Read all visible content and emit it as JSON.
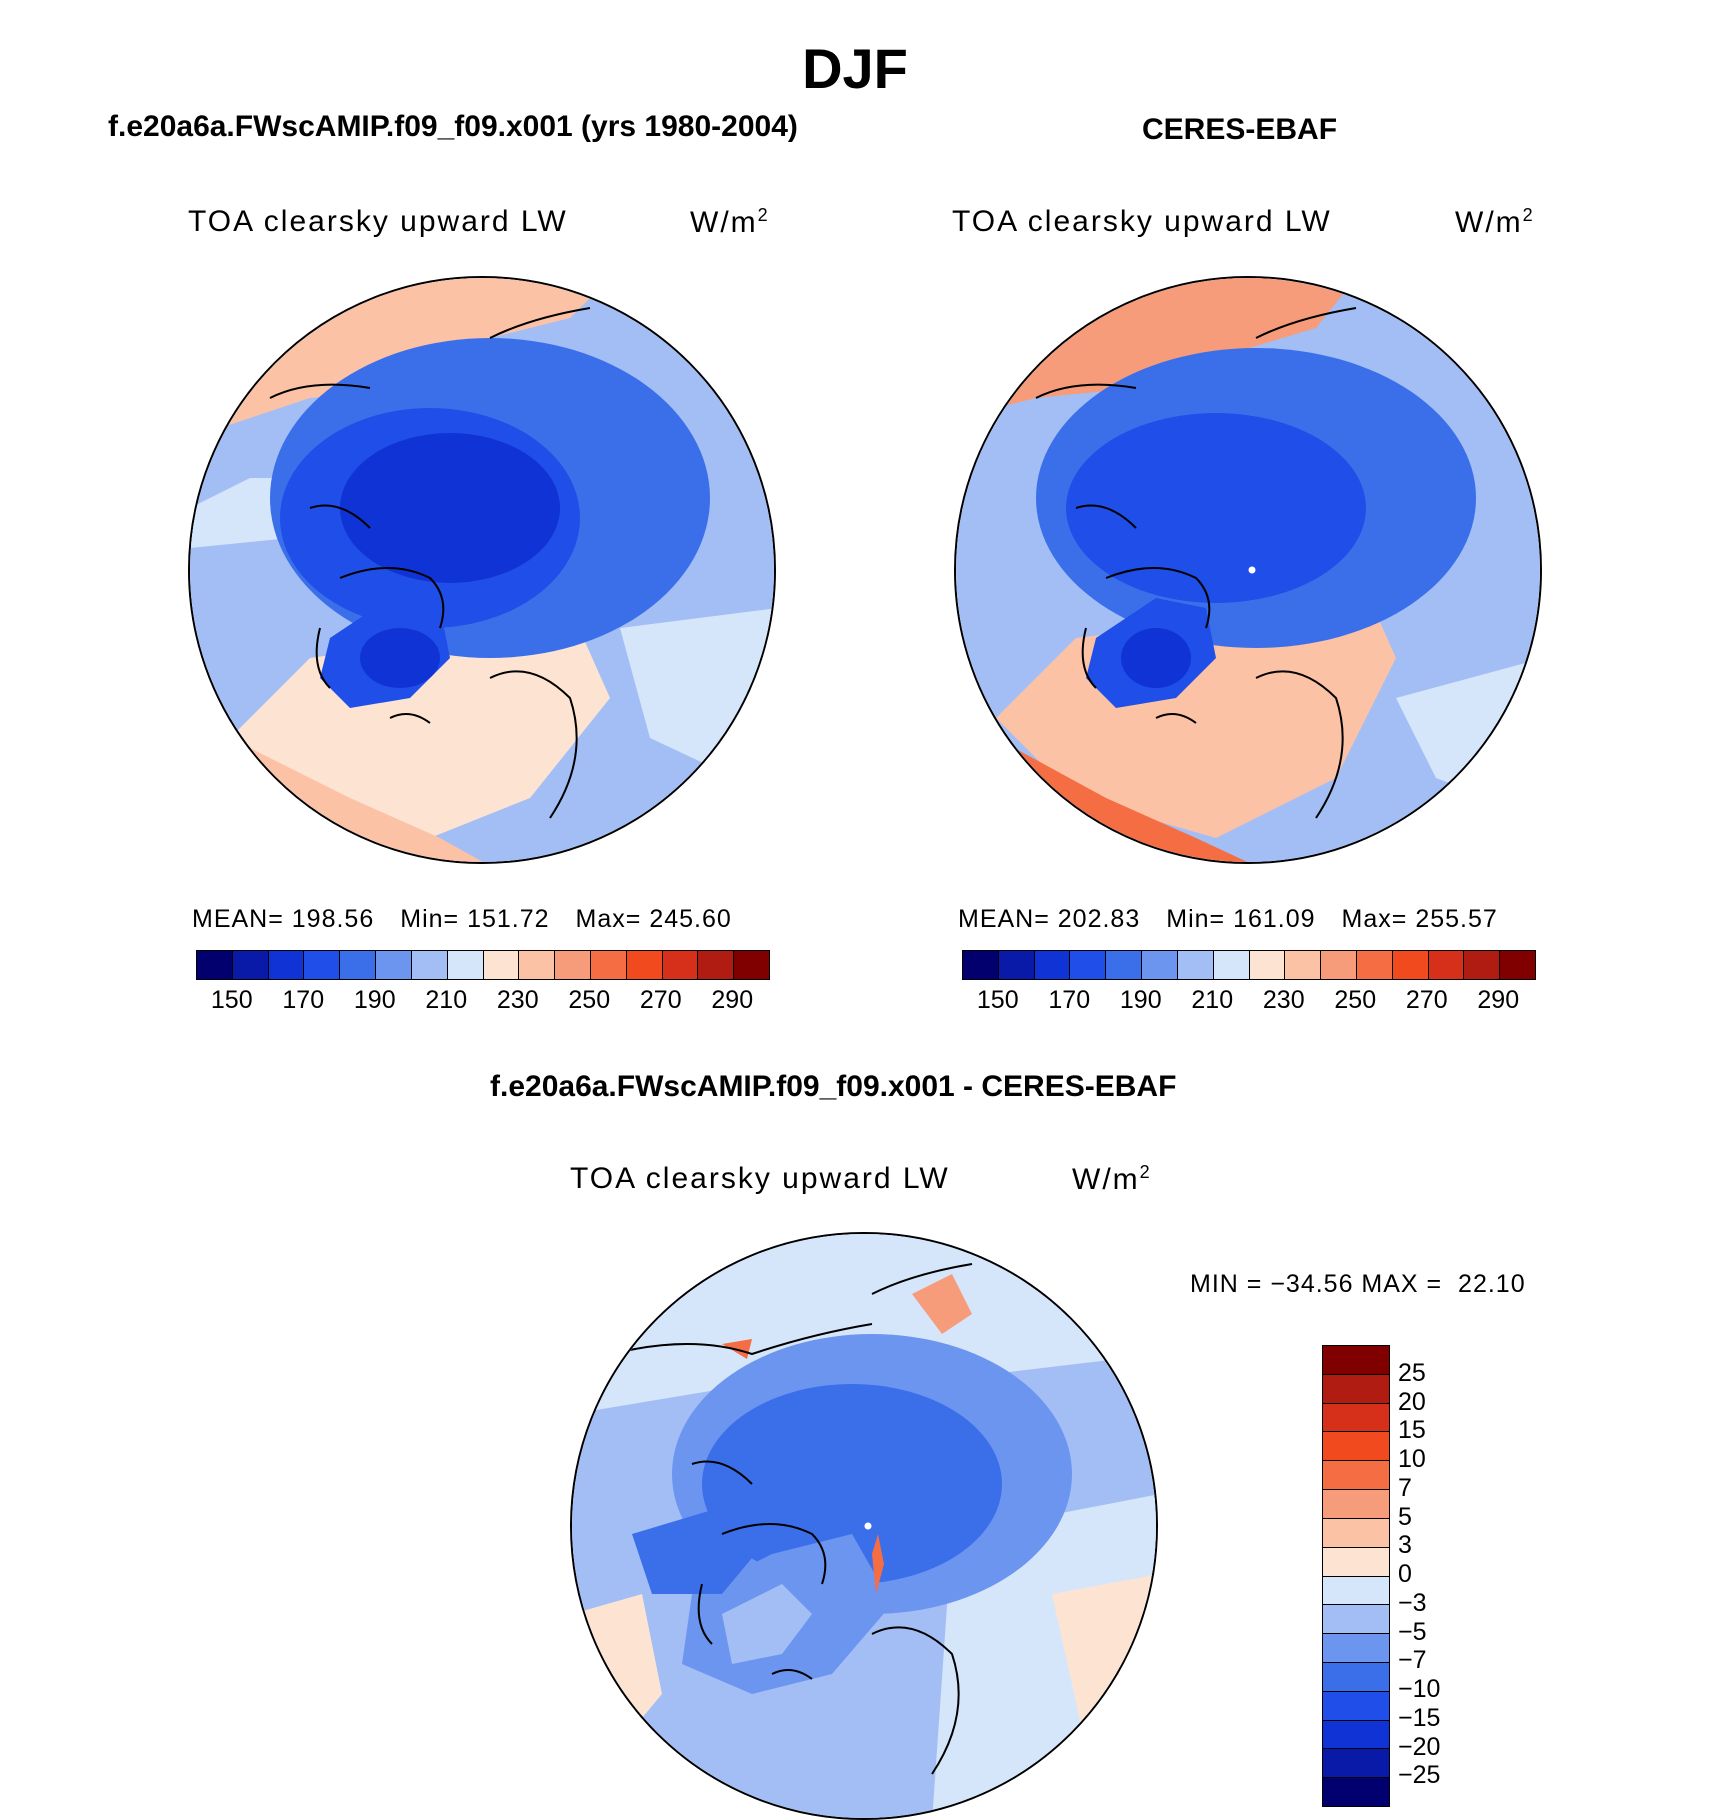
{
  "season": "DJF",
  "panels": {
    "model": {
      "title": "f.e20a6a.FWscAMIP.f09_f09.x001 (yrs 1980-2004)",
      "variable": "TOA clearsky upward LW",
      "unit": "W/m",
      "unit_exp": "2",
      "mean": "MEAN= 198.56",
      "min": "Min= 151.72",
      "max": "Max= 245.60"
    },
    "obs": {
      "title": "CERES-EBAF",
      "variable": "TOA clearsky upward LW",
      "unit": "W/m",
      "unit_exp": "2",
      "mean": "MEAN= 202.83",
      "min": "Min= 161.09",
      "max": "Max= 255.57"
    },
    "diff": {
      "title": "f.e20a6a.FWscAMIP.f09_f09.x001 - CERES-EBAF",
      "variable": "TOA clearsky upward LW",
      "unit": "W/m",
      "unit_exp": "2",
      "minmax": "MIN = −34.56 MAX =  22.10"
    }
  },
  "colorbar_abs": {
    "colors": [
      "#02006e",
      "#0a1aa8",
      "#1033d6",
      "#1f4fe8",
      "#3b6fea",
      "#6c95f0",
      "#a3bef5",
      "#d6e6fa",
      "#fde4d2",
      "#fbc2a6",
      "#f79c7a",
      "#f46d43",
      "#f04a1e",
      "#d7301a",
      "#b01b12",
      "#800000"
    ],
    "tick_labels": [
      "150",
      "170",
      "190",
      "210",
      "230",
      "250",
      "270",
      "290"
    ]
  },
  "colorbar_diff": {
    "colors": [
      "#800000",
      "#b01b12",
      "#d7301a",
      "#f04a1e",
      "#f46d43",
      "#f79c7a",
      "#fbc2a6",
      "#fde4d2",
      "#d6e6fa",
      "#a3bef5",
      "#6c95f0",
      "#3b6fea",
      "#1f4fe8",
      "#1033d6",
      "#0a1aa8",
      "#02006e"
    ],
    "tick_labels": [
      "25",
      "20",
      "15",
      "10",
      "7",
      "5",
      "3",
      "0",
      "−3",
      "−5",
      "−7",
      "−10",
      "−15",
      "−20",
      "−25"
    ]
  }
}
